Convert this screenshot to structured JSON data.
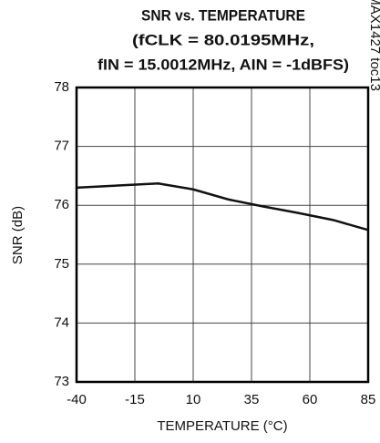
{
  "chart_data": {
    "type": "line",
    "title": [
      "SNR vs. TEMPERATURE",
      "(fCLK = 80.0195MHz,",
      "fIN = 15.0012MHz, AIN = -1dBFS)"
    ],
    "annotation": "MAX1427 toc13",
    "x_label": "TEMPERATURE (°C)",
    "y_label": "SNR (dB)",
    "x": [
      -40,
      -5,
      10,
      25,
      40,
      55,
      70,
      85
    ],
    "series": [
      {
        "color": "#111111",
        "values": [
          76.3,
          76.37,
          76.27,
          76.1,
          75.98,
          75.87,
          75.75,
          75.58
        ]
      }
    ],
    "xlim": [
      -40,
      85
    ],
    "xticks": [
      -40,
      -15,
      10,
      35,
      60,
      85
    ],
    "ylim": [
      73,
      78
    ],
    "yticks": [
      73,
      74,
      75,
      76,
      77,
      78
    ],
    "grid": true
  }
}
